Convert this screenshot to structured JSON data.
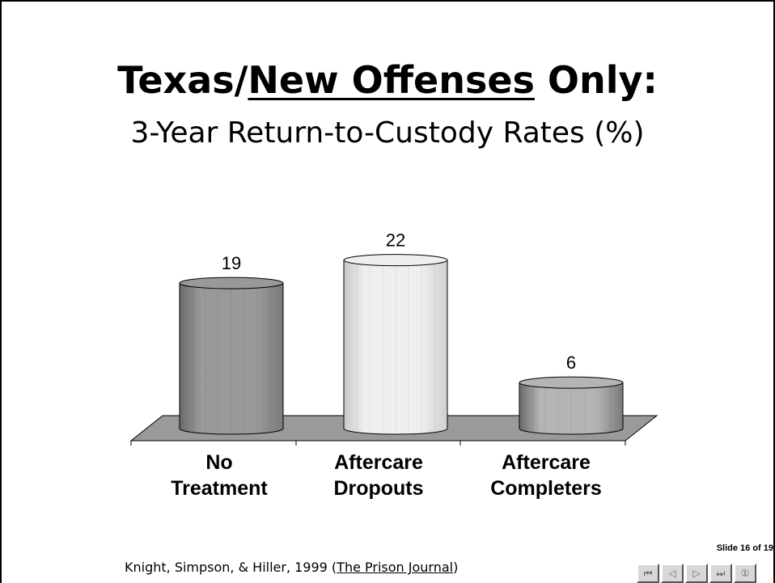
{
  "slide": {
    "title_part1": "Texas/",
    "title_underlined": "New Offenses",
    "title_part2": " Only:",
    "subtitle": "3-Year Return-to-Custody Rates (%)",
    "citation_prefix": "Knight, Simpson, & Hiller, 1999 (",
    "citation_journal": "The Prison Journal",
    "citation_suffix": ")",
    "slide_number": "Slide 16 of 19"
  },
  "nav": {
    "buttons": [
      {
        "name": "first-slide-button",
        "glyph": "⏮"
      },
      {
        "name": "previous-slide-button",
        "glyph": "◁"
      },
      {
        "name": "next-slide-button",
        "glyph": "▷"
      },
      {
        "name": "last-slide-button",
        "glyph": "⏭"
      },
      {
        "name": "slide-menu-button",
        "glyph": "①"
      }
    ]
  },
  "chart_data": {
    "type": "bar",
    "categories": [
      "No Treatment",
      "Aftercare Dropouts",
      "Aftercare Completers"
    ],
    "category_lines": [
      [
        "No",
        "Treatment"
      ],
      [
        "Aftercare",
        "Dropouts"
      ],
      [
        "Aftercare",
        "Completers"
      ]
    ],
    "values": [
      19,
      22,
      6
    ],
    "data_labels": [
      "19",
      "22",
      "6"
    ],
    "bar_colors": [
      "#999999",
      "#efefef",
      "#b4b4b4"
    ],
    "floor_color": "#9a9a9a",
    "style": "3d-cylinder"
  }
}
